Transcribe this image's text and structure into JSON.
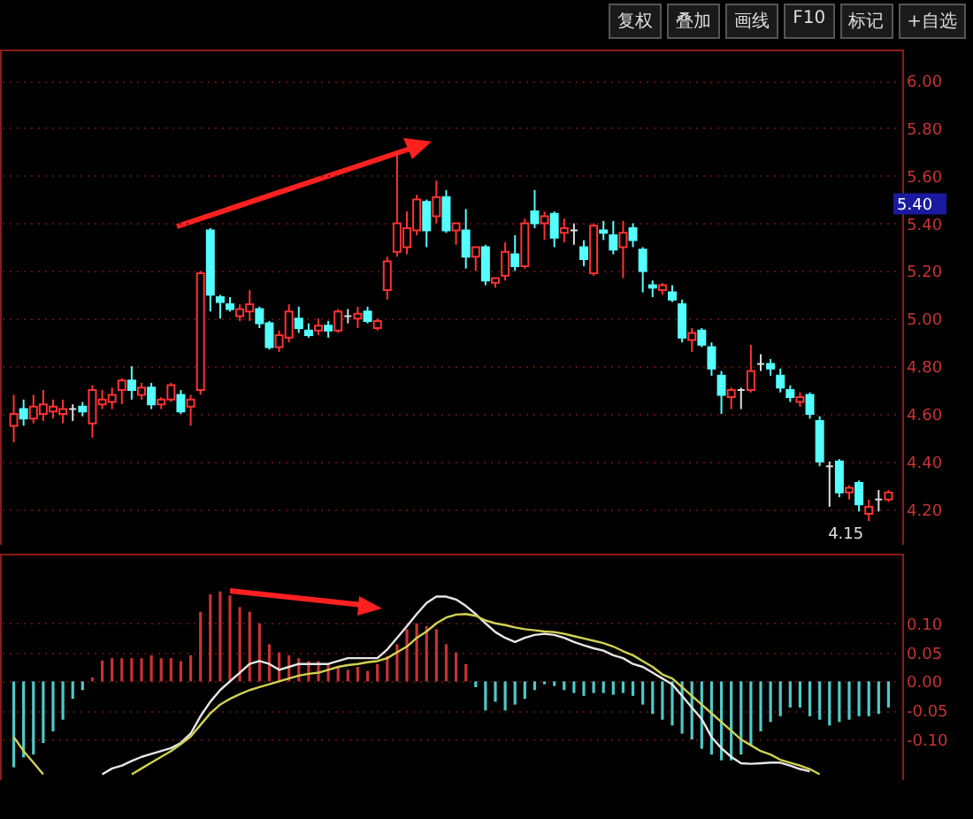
{
  "chart_data": [
    {
      "type": "candlestick",
      "categories": [
        null,
        null,
        null,
        null,
        null,
        null,
        null,
        null,
        null,
        null,
        null,
        null,
        null,
        null,
        null,
        null,
        null,
        null,
        null,
        null,
        null,
        null,
        null,
        null,
        null,
        null,
        null,
        null,
        null,
        null,
        null,
        null,
        null,
        null,
        null,
        null,
        null,
        null,
        null,
        null,
        null,
        null,
        null,
        null,
        null,
        null,
        null,
        null,
        null,
        null,
        null,
        null,
        null,
        null,
        null,
        null,
        null,
        null,
        null,
        null,
        null,
        null,
        null,
        null,
        null,
        null,
        null,
        null,
        null,
        null,
        null,
        null,
        null,
        null,
        null,
        null,
        null,
        null,
        null,
        null,
        null,
        null,
        null,
        null,
        null,
        null,
        null,
        null,
        null,
        null
      ],
      "ohlc": [
        [
          4.55,
          4.68,
          4.48,
          4.6
        ],
        [
          4.62,
          4.66,
          4.55,
          4.58
        ],
        [
          4.58,
          4.68,
          4.56,
          4.63
        ],
        [
          4.6,
          4.7,
          4.57,
          4.64
        ],
        [
          4.61,
          4.66,
          4.58,
          4.63
        ],
        [
          4.6,
          4.66,
          4.56,
          4.62
        ],
        [
          4.62,
          4.64,
          4.57,
          4.62
        ],
        [
          4.63,
          4.65,
          4.59,
          4.61
        ],
        [
          4.56,
          4.72,
          4.5,
          4.7
        ],
        [
          4.64,
          4.7,
          4.62,
          4.66
        ],
        [
          4.65,
          4.71,
          4.62,
          4.68
        ],
        [
          4.7,
          4.75,
          4.64,
          4.74
        ],
        [
          4.74,
          4.8,
          4.66,
          4.7
        ],
        [
          4.68,
          4.73,
          4.66,
          4.71
        ],
        [
          4.71,
          4.73,
          4.62,
          4.64
        ],
        [
          4.64,
          4.67,
          4.62,
          4.66
        ],
        [
          4.66,
          4.73,
          4.65,
          4.72
        ],
        [
          4.68,
          4.7,
          4.6,
          4.61
        ],
        [
          4.63,
          4.68,
          4.55,
          4.66
        ],
        [
          4.7,
          5.2,
          4.68,
          5.19
        ],
        [
          5.37,
          5.38,
          5.03,
          5.1
        ],
        [
          5.09,
          5.1,
          5.0,
          5.07
        ],
        [
          5.06,
          5.09,
          5.03,
          5.04
        ],
        [
          5.01,
          5.06,
          4.99,
          5.04
        ],
        [
          5.03,
          5.12,
          4.99,
          5.06
        ],
        [
          5.04,
          5.05,
          4.96,
          4.98
        ],
        [
          4.98,
          4.99,
          4.87,
          4.88
        ],
        [
          4.88,
          4.95,
          4.86,
          4.93
        ],
        [
          4.92,
          5.06,
          4.9,
          5.03
        ],
        [
          5.0,
          5.05,
          4.94,
          4.96
        ],
        [
          4.95,
          4.98,
          4.92,
          4.93
        ],
        [
          4.95,
          5.0,
          4.93,
          4.97
        ],
        [
          4.97,
          4.99,
          4.92,
          4.95
        ],
        [
          4.95,
          5.04,
          4.94,
          5.03
        ],
        [
          5.01,
          5.04,
          4.98,
          5.01
        ],
        [
          5.0,
          5.05,
          4.96,
          5.02
        ],
        [
          5.03,
          5.05,
          4.98,
          4.99
        ],
        [
          4.96,
          5.0,
          4.95,
          4.99
        ],
        [
          5.12,
          5.26,
          5.08,
          5.24
        ],
        [
          5.28,
          5.7,
          5.26,
          5.4
        ],
        [
          5.3,
          5.45,
          5.27,
          5.38
        ],
        [
          5.37,
          5.52,
          5.35,
          5.5
        ],
        [
          5.49,
          5.5,
          5.3,
          5.37
        ],
        [
          5.43,
          5.58,
          5.4,
          5.51
        ],
        [
          5.51,
          5.54,
          5.36,
          5.37
        ],
        [
          5.37,
          5.4,
          5.31,
          5.4
        ],
        [
          5.37,
          5.46,
          5.21,
          5.26
        ],
        [
          5.26,
          5.3,
          5.2,
          5.3
        ],
        [
          5.3,
          5.31,
          5.14,
          5.16
        ],
        [
          5.15,
          5.17,
          5.13,
          5.17
        ],
        [
          5.18,
          5.32,
          5.16,
          5.28
        ],
        [
          5.27,
          5.35,
          5.2,
          5.22
        ],
        [
          5.22,
          5.42,
          5.21,
          5.4
        ],
        [
          5.45,
          5.54,
          5.38,
          5.4
        ],
        [
          5.4,
          5.45,
          5.33,
          5.43
        ],
        [
          5.44,
          5.45,
          5.3,
          5.34
        ],
        [
          5.36,
          5.42,
          5.32,
          5.38
        ],
        [
          5.37,
          5.4,
          5.31,
          5.37
        ],
        [
          5.3,
          5.33,
          5.22,
          5.25
        ],
        [
          5.19,
          5.4,
          5.18,
          5.39
        ],
        [
          5.37,
          5.41,
          5.33,
          5.36
        ],
        [
          5.35,
          5.41,
          5.27,
          5.29
        ],
        [
          5.3,
          5.41,
          5.17,
          5.36
        ],
        [
          5.38,
          5.4,
          5.3,
          5.33
        ],
        [
          5.29,
          5.3,
          5.11,
          5.2
        ],
        [
          5.14,
          5.16,
          5.09,
          5.13
        ],
        [
          5.12,
          5.15,
          5.1,
          5.14
        ],
        [
          5.11,
          5.14,
          5.07,
          5.08
        ],
        [
          5.06,
          5.08,
          4.9,
          4.92
        ],
        [
          4.91,
          4.96,
          4.86,
          4.94
        ],
        [
          4.95,
          4.96,
          4.88,
          4.89
        ],
        [
          4.88,
          4.9,
          4.76,
          4.79
        ],
        [
          4.76,
          4.78,
          4.6,
          4.68
        ],
        [
          4.67,
          4.71,
          4.62,
          4.7
        ],
        [
          4.7,
          4.71,
          4.62,
          4.7
        ],
        [
          4.7,
          4.89,
          4.69,
          4.78
        ],
        [
          4.81,
          4.85,
          4.78,
          4.81
        ],
        [
          4.81,
          4.83,
          4.76,
          4.79
        ],
        [
          4.76,
          4.79,
          4.69,
          4.71
        ],
        [
          4.7,
          4.72,
          4.65,
          4.67
        ],
        [
          4.65,
          4.69,
          4.63,
          4.67
        ],
        [
          4.68,
          4.69,
          4.58,
          4.6
        ],
        [
          4.57,
          4.59,
          4.38,
          4.4
        ],
        [
          4.38,
          4.4,
          4.21,
          4.38
        ],
        [
          4.4,
          4.41,
          4.25,
          4.27
        ],
        [
          4.27,
          4.3,
          4.24,
          4.29
        ],
        [
          4.31,
          4.32,
          4.19,
          4.22
        ],
        [
          4.18,
          4.24,
          4.15,
          4.21
        ],
        [
          4.24,
          4.28,
          4.19,
          4.24
        ],
        [
          4.24,
          4.28,
          4.23,
          4.27
        ]
      ],
      "colors": [
        "#ff3232",
        "#54ffff",
        "#ff3232",
        "#ff3232",
        "#ff3232",
        "#ff3232",
        "#dcdcdc",
        "#54ffff",
        "#ff3232",
        "#ff3232",
        "#ff3232",
        "#ff3232",
        "#54ffff",
        "#ff3232",
        "#54ffff",
        "#ff3232",
        "#ff3232",
        "#54ffff",
        "#ff3232",
        "#ff3232",
        "#54ffff",
        "#54ffff",
        "#54ffff",
        "#ff3232",
        "#ff3232",
        "#54ffff",
        "#54ffff",
        "#ff3232",
        "#ff3232",
        "#54ffff",
        "#54ffff",
        "#ff3232",
        "#54ffff",
        "#ff3232",
        "#dcdcdc",
        "#ff3232",
        "#54ffff",
        "#ff3232",
        "#ff3232",
        "#ff3232",
        "#ff3232",
        "#ff3232",
        "#54ffff",
        "#ff3232",
        "#54ffff",
        "#ff3232",
        "#54ffff",
        "#ff3232",
        "#54ffff",
        "#ff3232",
        "#ff3232",
        "#54ffff",
        "#ff3232",
        "#54ffff",
        "#ff3232",
        "#54ffff",
        "#ff3232",
        "#dcdcdc",
        "#54ffff",
        "#ff3232",
        "#54ffff",
        "#54ffff",
        "#ff3232",
        "#54ffff",
        "#54ffff",
        "#54ffff",
        "#ff3232",
        "#54ffff",
        "#54ffff",
        "#ff3232",
        "#54ffff",
        "#54ffff",
        "#54ffff",
        "#ff3232",
        "#dcdcdc",
        "#ff3232",
        "#dcdcdc",
        "#54ffff",
        "#54ffff",
        "#54ffff",
        "#ff3232",
        "#54ffff",
        "#54ffff",
        "#dcdcdc",
        "#54ffff",
        "#ff3232",
        "#54ffff",
        "#ff3232",
        "#dcdcdc",
        "#ff3232"
      ],
      "ylim": [
        4.05,
        6.13
      ],
      "yticks": [
        {
          "value": 4.2,
          "label": "4.20"
        },
        {
          "value": 4.4,
          "label": "4.40"
        },
        {
          "value": 4.6,
          "label": "4.60"
        },
        {
          "value": 4.8,
          "label": "4.80"
        },
        {
          "value": 5,
          "label": "5.00"
        },
        {
          "value": 5.2,
          "label": "5.20"
        },
        {
          "value": 5.4,
          "label": "5.40"
        },
        {
          "value": 5.6,
          "label": "5.60"
        },
        {
          "value": 5.8,
          "label": "5.80"
        },
        {
          "value": 6,
          "label": "6.00"
        }
      ],
      "grid": "y",
      "tick_labels": "y",
      "annotations": [
        "复权",
        "叠加",
        "画线",
        "F10",
        "标记",
        "+自选",
        "4.15",
        "5.40"
      ]
    },
    {
      "type": "bar",
      "categories": [
        null,
        null,
        null,
        null,
        null,
        null,
        null,
        null,
        null,
        null,
        null,
        null,
        null,
        null,
        null,
        null,
        null,
        null,
        null,
        null,
        null,
        null,
        null,
        null,
        null,
        null,
        null,
        null,
        null,
        null,
        null,
        null,
        null,
        null,
        null,
        null,
        null,
        null,
        null,
        null,
        null,
        null,
        null,
        null,
        null,
        null,
        null,
        null,
        null,
        null,
        null,
        null,
        null,
        null,
        null,
        null,
        null,
        null,
        null,
        null,
        null,
        null,
        null,
        null,
        null,
        null,
        null,
        null,
        null,
        null,
        null,
        null,
        null,
        null,
        null,
        null,
        null,
        null,
        null,
        null,
        null,
        null,
        null,
        null,
        null,
        null,
        null,
        null,
        null,
        null
      ],
      "series": [
        {
          "type": "bar",
          "values": [
            -0.148,
            -0.131,
            -0.126,
            -0.106,
            -0.086,
            -0.066,
            -0.03,
            -0.015,
            0.007,
            0.036,
            0.04,
            0.04,
            0.04,
            0.04,
            0.045,
            0.04,
            0.04,
            0.035,
            0.045,
            0.12,
            0.15,
            0.155,
            0.148,
            0.128,
            0.12,
            0.1,
            0.064,
            0.05,
            0.045,
            0.04,
            0.035,
            0.035,
            0.03,
            0.025,
            0.02,
            0.025,
            0.018,
            0.03,
            0.043,
            0.064,
            0.09,
            0.1,
            0.095,
            0.09,
            0.064,
            0.05,
            0.03,
            -0.01,
            -0.05,
            -0.035,
            -0.05,
            -0.04,
            -0.03,
            -0.015,
            -0.005,
            -0.008,
            -0.015,
            -0.02,
            -0.025,
            -0.02,
            -0.02,
            -0.023,
            -0.02,
            -0.025,
            -0.04,
            -0.056,
            -0.066,
            -0.076,
            -0.09,
            -0.1,
            -0.116,
            -0.126,
            -0.136,
            -0.136,
            -0.126,
            -0.11,
            -0.086,
            -0.07,
            -0.06,
            -0.045,
            -0.045,
            -0.06,
            -0.066,
            -0.076,
            -0.07,
            -0.066,
            -0.06,
            -0.06,
            -0.056,
            -0.045
          ],
          "colors": [
            "#50c8c8",
            "#50c8c8",
            "#50c8c8",
            "#50c8c8",
            "#50c8c8",
            "#50c8c8",
            "#50c8c8",
            "#50c8c8",
            "#c83232",
            "#c83232",
            "#c83232",
            "#c83232",
            "#c83232",
            "#c83232",
            "#c83232",
            "#c83232",
            "#c83232",
            "#c83232",
            "#c83232",
            "#c83232",
            "#c83232",
            "#c83232",
            "#c83232",
            "#c83232",
            "#c83232",
            "#c83232",
            "#c83232",
            "#c83232",
            "#c83232",
            "#c83232",
            "#c83232",
            "#c83232",
            "#c83232",
            "#c83232",
            "#c83232",
            "#c83232",
            "#c83232",
            "#c83232",
            "#c83232",
            "#c83232",
            "#c83232",
            "#c83232",
            "#c83232",
            "#c83232",
            "#c83232",
            "#c83232",
            "#c83232",
            "#50c8c8",
            "#50c8c8",
            "#50c8c8",
            "#50c8c8",
            "#50c8c8",
            "#50c8c8",
            "#50c8c8",
            "#50c8c8",
            "#50c8c8",
            "#50c8c8",
            "#50c8c8",
            "#50c8c8",
            "#50c8c8",
            "#50c8c8",
            "#50c8c8",
            "#50c8c8",
            "#50c8c8",
            "#50c8c8",
            "#50c8c8",
            "#50c8c8",
            "#50c8c8",
            "#50c8c8",
            "#50c8c8",
            "#50c8c8",
            "#50c8c8",
            "#50c8c8",
            "#50c8c8",
            "#50c8c8",
            "#50c8c8",
            "#50c8c8",
            "#50c8c8",
            "#50c8c8",
            "#50c8c8",
            "#50c8c8",
            "#50c8c8",
            "#50c8c8",
            "#50c8c8",
            "#50c8c8",
            "#50c8c8",
            "#50c8c8",
            "#50c8c8",
            "#50c8c8",
            "#50c8c8"
          ]
        },
        {
          "type": "line",
          "color": "#e6e6e6",
          "values": [
            null,
            null,
            null,
            null,
            null,
            null,
            null,
            null,
            null,
            -0.16,
            -0.15,
            -0.145,
            -0.137,
            -0.13,
            -0.125,
            -0.12,
            -0.115,
            -0.106,
            -0.09,
            -0.06,
            -0.035,
            -0.015,
            0.0,
            0.015,
            0.03,
            0.035,
            0.03,
            0.02,
            0.025,
            0.03,
            0.03,
            0.03,
            0.03,
            0.035,
            0.04,
            0.04,
            0.04,
            0.04,
            0.055,
            0.075,
            0.095,
            0.116,
            0.135,
            0.146,
            0.146,
            0.141,
            0.13,
            0.116,
            0.1,
            0.085,
            0.075,
            0.068,
            0.075,
            0.08,
            0.082,
            0.08,
            0.075,
            0.068,
            0.062,
            0.057,
            0.053,
            0.045,
            0.04,
            0.03,
            0.025,
            0.015,
            0.005,
            -0.005,
            -0.025,
            -0.045,
            -0.065,
            -0.096,
            -0.115,
            -0.13,
            -0.141,
            -0.142,
            -0.141,
            -0.14,
            -0.14,
            -0.145,
            -0.151,
            -0.155,
            null,
            null,
            null,
            null,
            null,
            null,
            null,
            null
          ]
        },
        {
          "type": "line",
          "color": "#d2d250",
          "values": [
            -0.096,
            -0.12,
            -0.14,
            -0.16,
            null,
            null,
            null,
            null,
            null,
            null,
            null,
            null,
            -0.16,
            -0.15,
            -0.14,
            -0.13,
            -0.12,
            -0.108,
            -0.095,
            -0.075,
            -0.055,
            -0.04,
            -0.03,
            -0.022,
            -0.015,
            -0.01,
            -0.005,
            0.0,
            0.005,
            0.01,
            0.013,
            0.015,
            0.02,
            0.025,
            0.028,
            0.03,
            0.033,
            0.035,
            0.04,
            0.05,
            0.06,
            0.075,
            0.086,
            0.1,
            0.11,
            0.115,
            0.116,
            0.113,
            0.105,
            0.1,
            0.097,
            0.093,
            0.09,
            0.088,
            0.086,
            0.085,
            0.082,
            0.078,
            0.074,
            0.07,
            0.066,
            0.06,
            0.052,
            0.045,
            0.035,
            0.025,
            0.012,
            0.005,
            -0.01,
            -0.025,
            -0.04,
            -0.055,
            -0.07,
            -0.085,
            -0.1,
            -0.11,
            -0.12,
            -0.126,
            -0.135,
            -0.14,
            -0.145,
            -0.151,
            -0.16,
            null,
            null,
            null,
            null,
            null,
            null,
            null
          ]
        }
      ],
      "ylim": [
        -0.17,
        0.22
      ],
      "yticks": [
        {
          "value": -0.1,
          "label": "-0.10"
        },
        {
          "value": -0.05,
          "label": "-0.05"
        },
        {
          "value": 0,
          "label": "0.00"
        },
        {
          "value": 0.05,
          "label": "0.05"
        },
        {
          "value": 0.1,
          "label": "0.10"
        }
      ],
      "grid": "y",
      "tick_labels": "y"
    }
  ]
}
